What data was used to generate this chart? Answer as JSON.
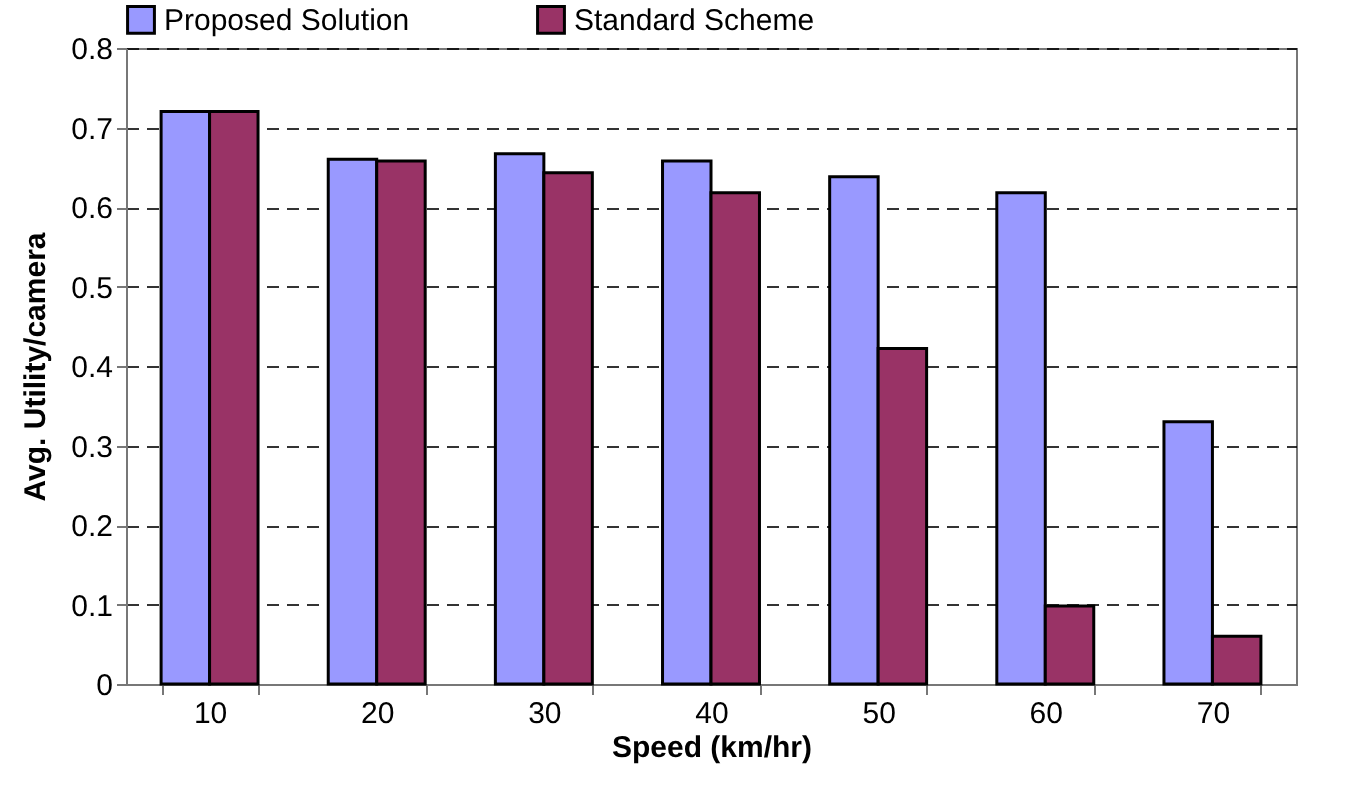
{
  "chart_data": {
    "type": "bar",
    "xlabel": "Speed (km/hr)",
    "ylabel": "Avg. Utility/camera",
    "categories": [
      "10",
      "20",
      "30",
      "40",
      "50",
      "60",
      "70"
    ],
    "series": [
      {
        "name": "Proposed Solution",
        "color": "#9999ff",
        "values": [
          0.72,
          0.66,
          0.667,
          0.658,
          0.638,
          0.618,
          0.33
        ]
      },
      {
        "name": "Standard Scheme",
        "color": "#993366",
        "values": [
          0.72,
          0.658,
          0.643,
          0.618,
          0.422,
          0.098,
          0.06
        ]
      }
    ],
    "ylim": [
      0,
      0.8
    ],
    "yticks": [
      0,
      0.1,
      0.2,
      0.3,
      0.4,
      0.5,
      0.6,
      0.7,
      0.8
    ],
    "grid": "y",
    "legend": "top"
  }
}
